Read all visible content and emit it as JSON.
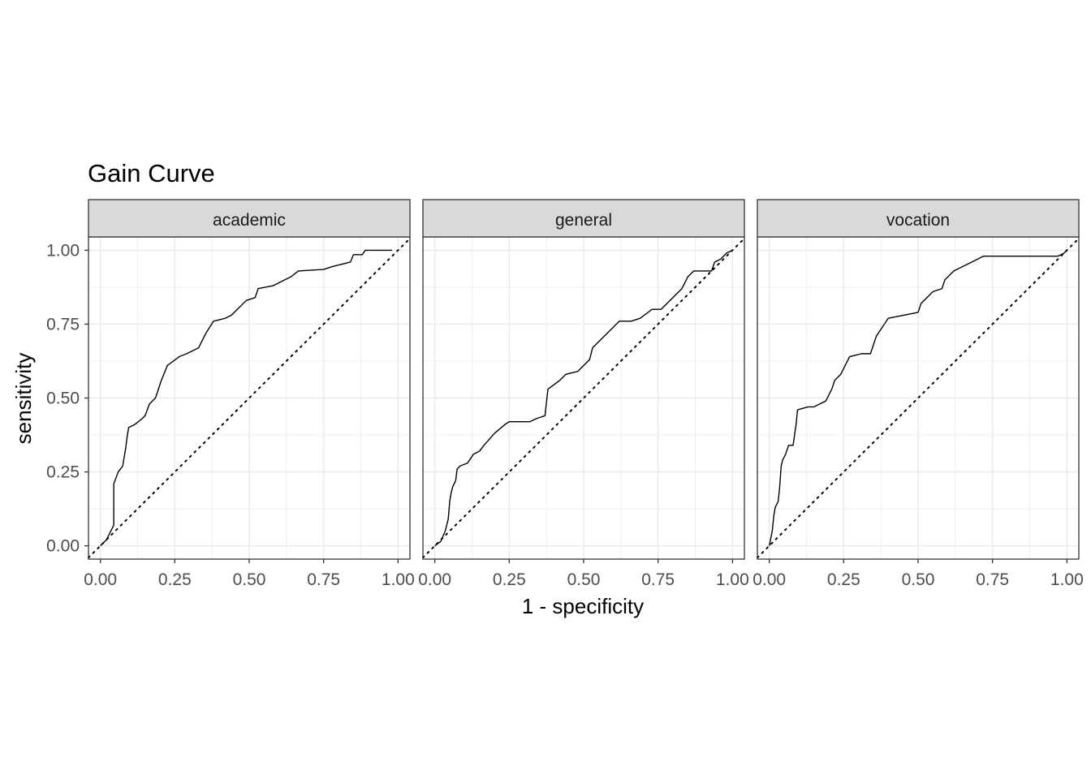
{
  "chart_data": {
    "type": "line",
    "title": "Gain Curve",
    "xlabel": "1 - specificity",
    "ylabel": "sensitivity",
    "xlim": [
      -0.04,
      1.04
    ],
    "ylim": [
      -0.045,
      1.045
    ],
    "x_ticks": [
      "0.00",
      "0.25",
      "0.50",
      "0.75",
      "1.00"
    ],
    "y_ticks": [
      "0.00",
      "0.25",
      "0.50",
      "0.75",
      "1.00"
    ],
    "grid": true,
    "reference_line": "diagonal dotted y = x",
    "colors": {
      "line": "#000000",
      "strip_bg": "#d9d9d9",
      "grid": "#ebebeb",
      "tick_text": "#4d4d4d"
    },
    "facets": [
      {
        "name": "academic",
        "points": [
          [
            0,
            0
          ],
          [
            0.02,
            0.02
          ],
          [
            0.035,
            0.05
          ],
          [
            0.045,
            0.07
          ],
          [
            0.045,
            0.21
          ],
          [
            0.06,
            0.25
          ],
          [
            0.075,
            0.27
          ],
          [
            0.085,
            0.33
          ],
          [
            0.09,
            0.37
          ],
          [
            0.095,
            0.4
          ],
          [
            0.115,
            0.41
          ],
          [
            0.14,
            0.43
          ],
          [
            0.15,
            0.44
          ],
          [
            0.165,
            0.48
          ],
          [
            0.185,
            0.5
          ],
          [
            0.205,
            0.56
          ],
          [
            0.225,
            0.61
          ],
          [
            0.265,
            0.64
          ],
          [
            0.29,
            0.65
          ],
          [
            0.33,
            0.67
          ],
          [
            0.355,
            0.72
          ],
          [
            0.38,
            0.76
          ],
          [
            0.42,
            0.77
          ],
          [
            0.44,
            0.78
          ],
          [
            0.46,
            0.8
          ],
          [
            0.49,
            0.83
          ],
          [
            0.52,
            0.84
          ],
          [
            0.53,
            0.87
          ],
          [
            0.58,
            0.88
          ],
          [
            0.62,
            0.9
          ],
          [
            0.64,
            0.91
          ],
          [
            0.665,
            0.93
          ],
          [
            0.75,
            0.935
          ],
          [
            0.78,
            0.945
          ],
          [
            0.82,
            0.955
          ],
          [
            0.84,
            0.96
          ],
          [
            0.85,
            0.985
          ],
          [
            0.88,
            0.985
          ],
          [
            0.89,
            1.0
          ],
          [
            0.98,
            1.0
          ]
        ]
      },
      {
        "name": "general",
        "points": [
          [
            0,
            0
          ],
          [
            0.02,
            0.015
          ],
          [
            0.035,
            0.05
          ],
          [
            0.045,
            0.09
          ],
          [
            0.05,
            0.15
          ],
          [
            0.055,
            0.18
          ],
          [
            0.06,
            0.2
          ],
          [
            0.07,
            0.22
          ],
          [
            0.075,
            0.26
          ],
          [
            0.085,
            0.27
          ],
          [
            0.11,
            0.28
          ],
          [
            0.13,
            0.31
          ],
          [
            0.15,
            0.32
          ],
          [
            0.165,
            0.34
          ],
          [
            0.2,
            0.38
          ],
          [
            0.235,
            0.41
          ],
          [
            0.25,
            0.42
          ],
          [
            0.32,
            0.42
          ],
          [
            0.34,
            0.43
          ],
          [
            0.37,
            0.44
          ],
          [
            0.38,
            0.53
          ],
          [
            0.42,
            0.56
          ],
          [
            0.44,
            0.58
          ],
          [
            0.48,
            0.59
          ],
          [
            0.52,
            0.63
          ],
          [
            0.53,
            0.67
          ],
          [
            0.56,
            0.7
          ],
          [
            0.6,
            0.74
          ],
          [
            0.62,
            0.76
          ],
          [
            0.66,
            0.76
          ],
          [
            0.69,
            0.77
          ],
          [
            0.73,
            0.8
          ],
          [
            0.76,
            0.8
          ],
          [
            0.78,
            0.82
          ],
          [
            0.81,
            0.85
          ],
          [
            0.83,
            0.87
          ],
          [
            0.85,
            0.91
          ],
          [
            0.87,
            0.93
          ],
          [
            0.93,
            0.93
          ],
          [
            0.94,
            0.96
          ],
          [
            0.96,
            0.97
          ],
          [
            0.98,
            0.99
          ],
          [
            1,
            1
          ]
        ]
      },
      {
        "name": "vocation",
        "points": [
          [
            0,
            0
          ],
          [
            0.01,
            0.05
          ],
          [
            0.015,
            0.1
          ],
          [
            0.02,
            0.13
          ],
          [
            0.03,
            0.15
          ],
          [
            0.035,
            0.2
          ],
          [
            0.04,
            0.27
          ],
          [
            0.045,
            0.29
          ],
          [
            0.055,
            0.31
          ],
          [
            0.065,
            0.34
          ],
          [
            0.08,
            0.34
          ],
          [
            0.09,
            0.41
          ],
          [
            0.095,
            0.46
          ],
          [
            0.13,
            0.47
          ],
          [
            0.15,
            0.47
          ],
          [
            0.17,
            0.48
          ],
          [
            0.19,
            0.49
          ],
          [
            0.2,
            0.51
          ],
          [
            0.21,
            0.53
          ],
          [
            0.22,
            0.56
          ],
          [
            0.23,
            0.57
          ],
          [
            0.24,
            0.58
          ],
          [
            0.26,
            0.62
          ],
          [
            0.27,
            0.64
          ],
          [
            0.31,
            0.65
          ],
          [
            0.34,
            0.65
          ],
          [
            0.36,
            0.71
          ],
          [
            0.38,
            0.74
          ],
          [
            0.4,
            0.77
          ],
          [
            0.5,
            0.79
          ],
          [
            0.51,
            0.82
          ],
          [
            0.53,
            0.84
          ],
          [
            0.55,
            0.86
          ],
          [
            0.58,
            0.87
          ],
          [
            0.59,
            0.9
          ],
          [
            0.62,
            0.93
          ],
          [
            0.66,
            0.95
          ],
          [
            0.68,
            0.96
          ],
          [
            0.72,
            0.98
          ],
          [
            0.75,
            0.98
          ],
          [
            0.97,
            0.98
          ],
          [
            0.99,
            0.99
          ],
          [
            1,
            1
          ]
        ]
      }
    ]
  }
}
